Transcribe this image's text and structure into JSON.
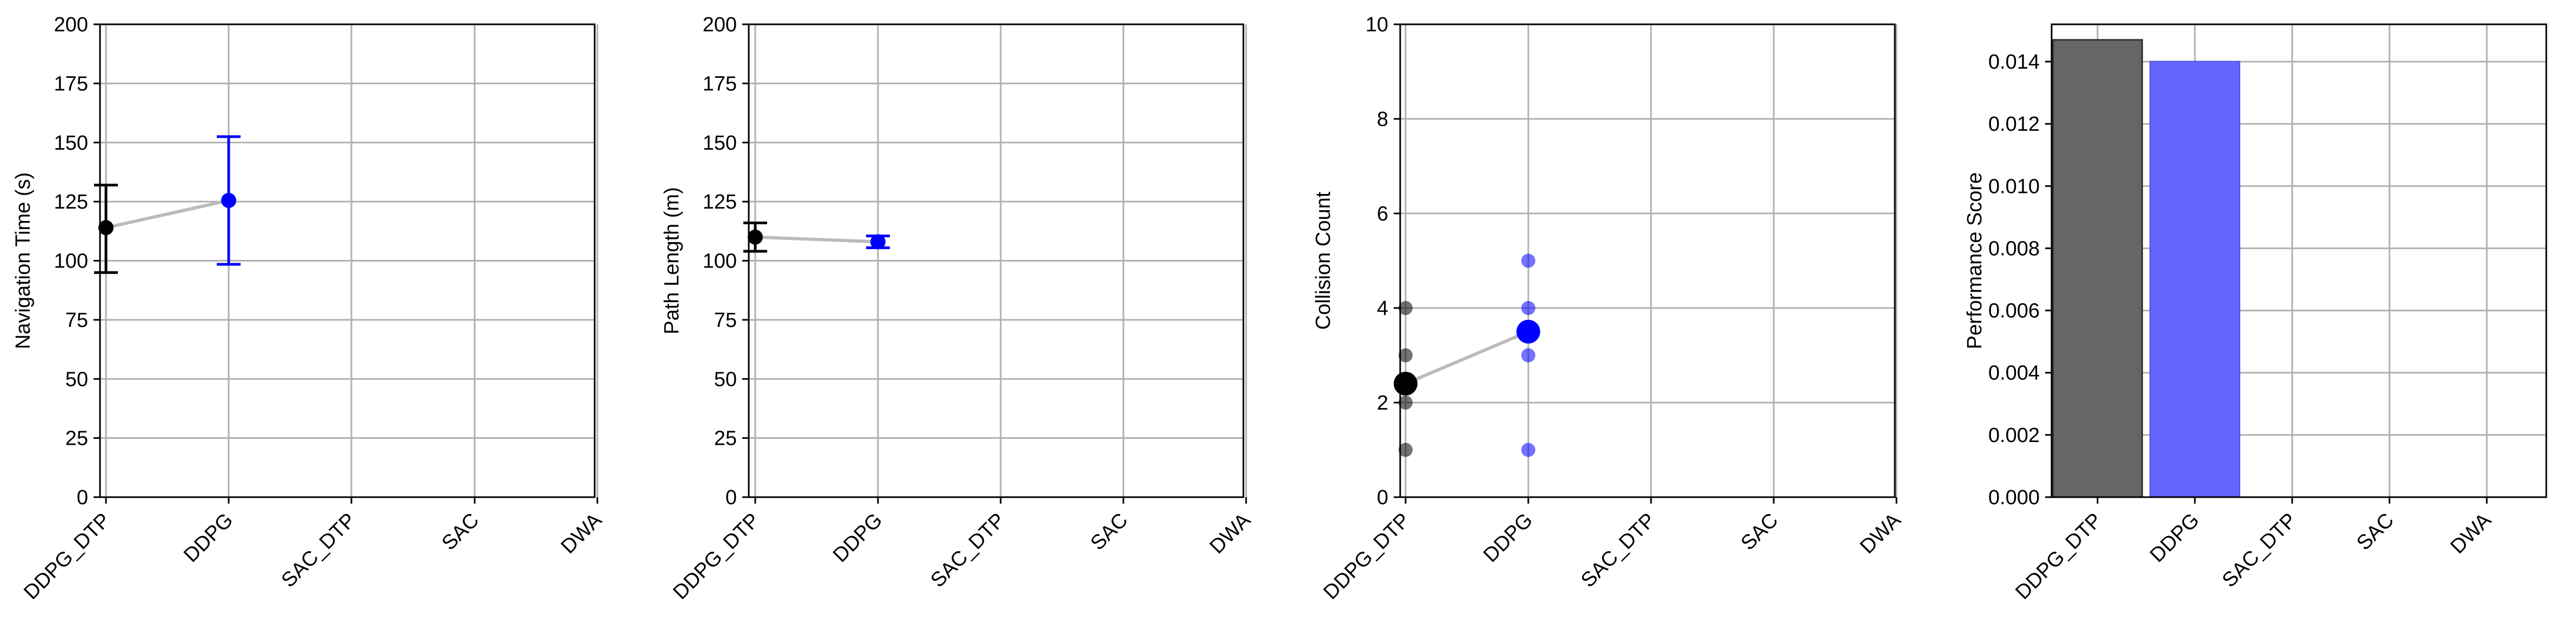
{
  "chart_data": [
    {
      "type": "scatter",
      "categories": [
        "DDPG_DTP",
        "DDPG",
        "SAC_DTP",
        "SAC",
        "DWA"
      ],
      "ylabel": "Navigation Time (s)",
      "ylim": [
        0,
        200
      ],
      "yticks": [
        0,
        25,
        50,
        75,
        100,
        125,
        150,
        175,
        200
      ],
      "grid": true,
      "points": [
        {
          "category": "DDPG_DTP",
          "mean": 114,
          "err_low": 95,
          "err_high": 132,
          "color": "#000000"
        },
        {
          "category": "DDPG",
          "mean": 125.5,
          "err_low": 98.5,
          "err_high": 152.5,
          "color": "#0000ff"
        }
      ],
      "connector_color": "#bbbbbb"
    },
    {
      "type": "scatter",
      "categories": [
        "DDPG_DTP",
        "DDPG",
        "SAC_DTP",
        "SAC",
        "DWA"
      ],
      "ylabel": "Path Length (m)",
      "ylim": [
        0,
        200
      ],
      "yticks": [
        0,
        25,
        50,
        75,
        100,
        125,
        150,
        175,
        200
      ],
      "grid": true,
      "points": [
        {
          "category": "DDPG_DTP",
          "mean": 110,
          "err_low": 104,
          "err_high": 116,
          "color": "#000000"
        },
        {
          "category": "DDPG",
          "mean": 108,
          "err_low": 105.5,
          "err_high": 110.5,
          "color": "#0000ff"
        }
      ],
      "connector_color": "#bbbbbb"
    },
    {
      "type": "scatter",
      "categories": [
        "DDPG_DTP",
        "DDPG",
        "SAC_DTP",
        "SAC",
        "DWA"
      ],
      "ylabel": "Collision Count",
      "ylim": [
        0,
        10
      ],
      "yticks": [
        0,
        2,
        4,
        6,
        8,
        10
      ],
      "grid": true,
      "individual_points": [
        {
          "category": "DDPG_DTP",
          "values": [
            1,
            2,
            3,
            4
          ],
          "color": "#000000"
        },
        {
          "category": "DDPG",
          "values": [
            1,
            3,
            4,
            5
          ],
          "color": "#0000ff"
        }
      ],
      "means": [
        {
          "category": "DDPG_DTP",
          "value": 2.4,
          "color": "#000000"
        },
        {
          "category": "DDPG",
          "value": 3.5,
          "color": "#0000ff"
        }
      ],
      "connector_color": "#bbbbbb"
    },
    {
      "type": "bar",
      "categories": [
        "DDPG_DTP",
        "DDPG",
        "SAC_DTP",
        "SAC",
        "DWA"
      ],
      "ylabel": "Performance Score",
      "ylim": [
        0,
        0.0152
      ],
      "yticks": [
        "0.000",
        "0.002",
        "0.004",
        "0.006",
        "0.008",
        "0.010",
        "0.012",
        "0.014"
      ],
      "grid": true,
      "bars": [
        {
          "category": "DDPG_DTP",
          "value": 0.0147,
          "color": "#666666"
        },
        {
          "category": "DDPG",
          "value": 0.014,
          "color": "#6666ff"
        }
      ]
    }
  ]
}
